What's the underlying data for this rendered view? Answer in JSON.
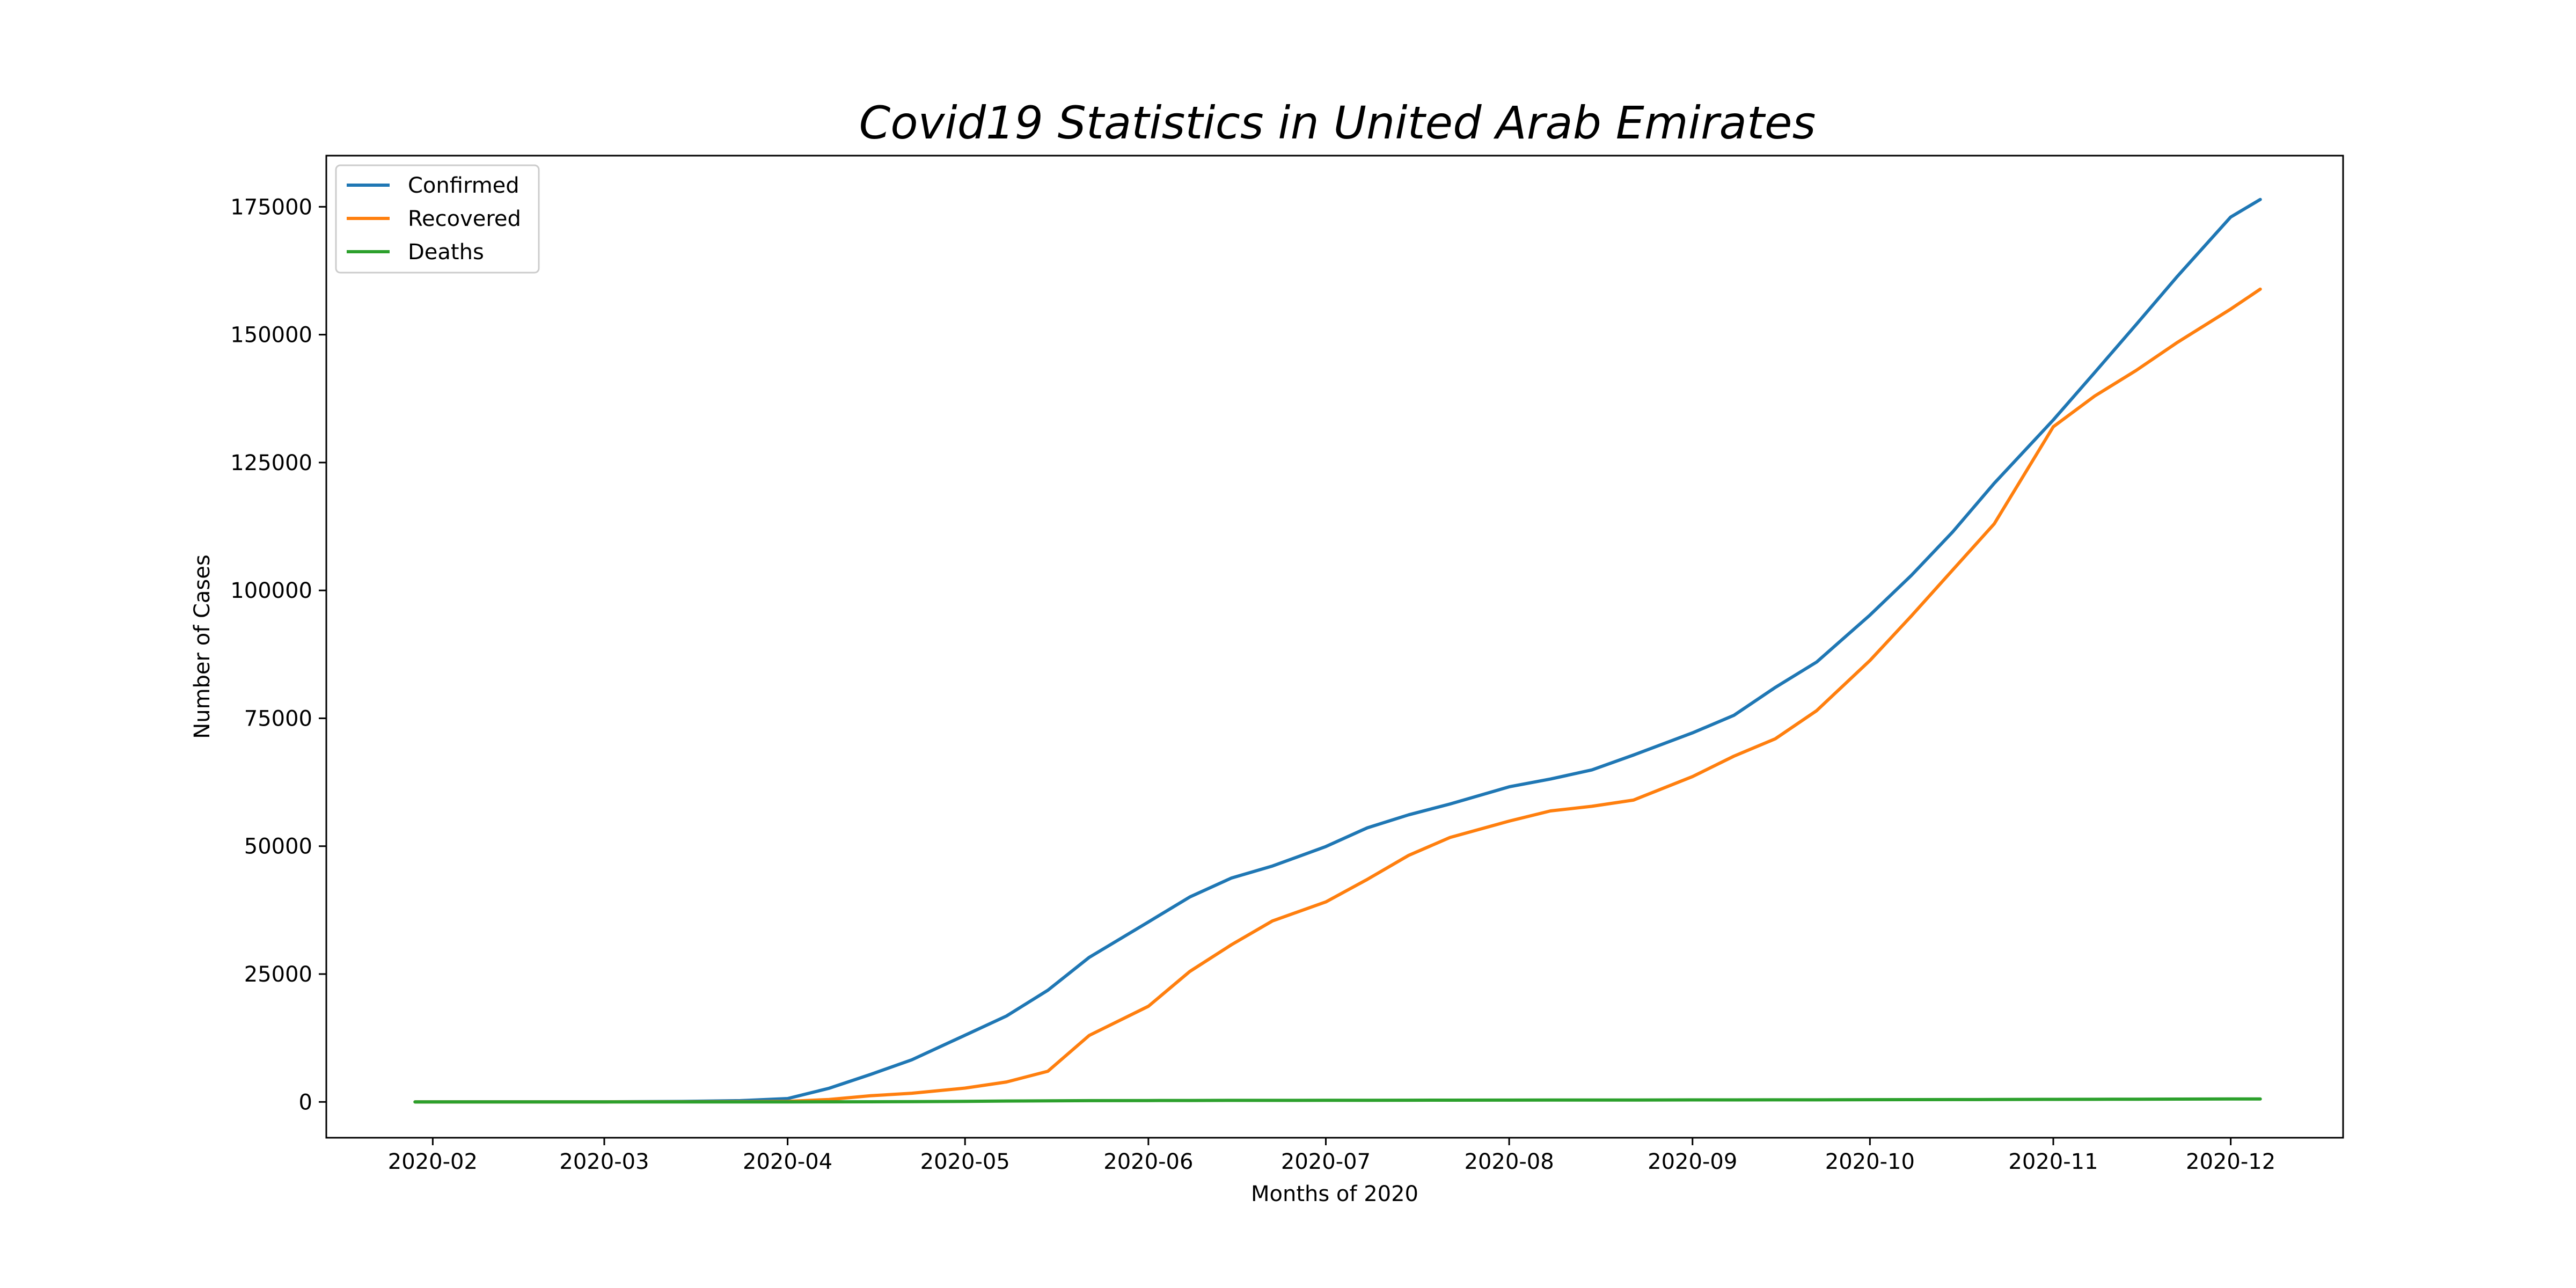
{
  "chart_data": {
    "type": "line",
    "title": "Covid19 Statistics in United Arab Emirates",
    "xlabel": "Months of 2020",
    "ylabel": "Number of Cases",
    "x_type": "date",
    "xlim": [
      "2020-01-14",
      "2020-12-20"
    ],
    "ylim": [
      -7000,
      185000
    ],
    "x_ticks": [
      "2020-02-01",
      "2020-03-01",
      "2020-04-01",
      "2020-05-01",
      "2020-06-01",
      "2020-07-01",
      "2020-08-01",
      "2020-09-01",
      "2020-10-01",
      "2020-11-01",
      "2020-12-01"
    ],
    "x_tick_labels": [
      "2020-02",
      "2020-03",
      "2020-04",
      "2020-05",
      "2020-06",
      "2020-07",
      "2020-08",
      "2020-09",
      "2020-10",
      "2020-11",
      "2020-12"
    ],
    "y_ticks": [
      0,
      25000,
      50000,
      75000,
      100000,
      125000,
      150000,
      175000
    ],
    "y_tick_labels": [
      "0",
      "25000",
      "50000",
      "75000",
      "100000",
      "125000",
      "150000",
      "175000"
    ],
    "grid": false,
    "legend_position": "top-left",
    "x": [
      "2020-01-29",
      "2020-02-15",
      "2020-03-01",
      "2020-03-15",
      "2020-03-24",
      "2020-04-01",
      "2020-04-08",
      "2020-04-15",
      "2020-04-22",
      "2020-05-01",
      "2020-05-08",
      "2020-05-15",
      "2020-05-22",
      "2020-06-01",
      "2020-06-08",
      "2020-06-15",
      "2020-06-22",
      "2020-07-01",
      "2020-07-08",
      "2020-07-15",
      "2020-07-22",
      "2020-08-01",
      "2020-08-08",
      "2020-08-15",
      "2020-08-22",
      "2020-09-01",
      "2020-09-08",
      "2020-09-15",
      "2020-09-22",
      "2020-10-01",
      "2020-10-08",
      "2020-10-15",
      "2020-10-22",
      "2020-11-01",
      "2020-11-08",
      "2020-11-15",
      "2020-11-22",
      "2020-12-01",
      "2020-12-06"
    ],
    "series": [
      {
        "name": "Confirmed",
        "color": "#1f77b4",
        "values": [
          4,
          19,
          21,
          98,
          248,
          664,
          2659,
          5365,
          8238,
          13038,
          16793,
          21831,
          28265,
          35192,
          40070,
          43753,
          46133,
          49930,
          53576,
          56129,
          58251,
          61606,
          63131,
          64906,
          67802,
          72154,
          75578,
          81041,
          86007,
          95177,
          102929,
          111437,
          120929,
          133329,
          142595,
          151963,
          161424,
          173000,
          176429
        ]
      },
      {
        "name": "Recovered",
        "color": "#ff7f0e",
        "values": [
          0,
          4,
          5,
          27,
          52,
          100,
          480,
          1200,
          1700,
          2700,
          3900,
          6000,
          13000,
          18700,
          25500,
          30700,
          35400,
          39100,
          43500,
          48200,
          51700,
          54900,
          56900,
          57800,
          59000,
          63600,
          67600,
          71000,
          76500,
          86300,
          95000,
          104000,
          113000,
          132000,
          138000,
          143000,
          148500,
          155000,
          158900
        ]
      },
      {
        "name": "Deaths",
        "color": "#2ca02c",
        "values": [
          0,
          0,
          0,
          0,
          2,
          8,
          20,
          33,
          52,
          111,
          174,
          210,
          245,
          273,
          283,
          300,
          305,
          316,
          321,
          335,
          342,
          351,
          363,
          370,
          378,
          394,
          398,
          404,
          409,
          436,
          448,
          460,
          470,
          503,
          517,
          532,
          550,
          570,
          582
        ]
      }
    ]
  }
}
